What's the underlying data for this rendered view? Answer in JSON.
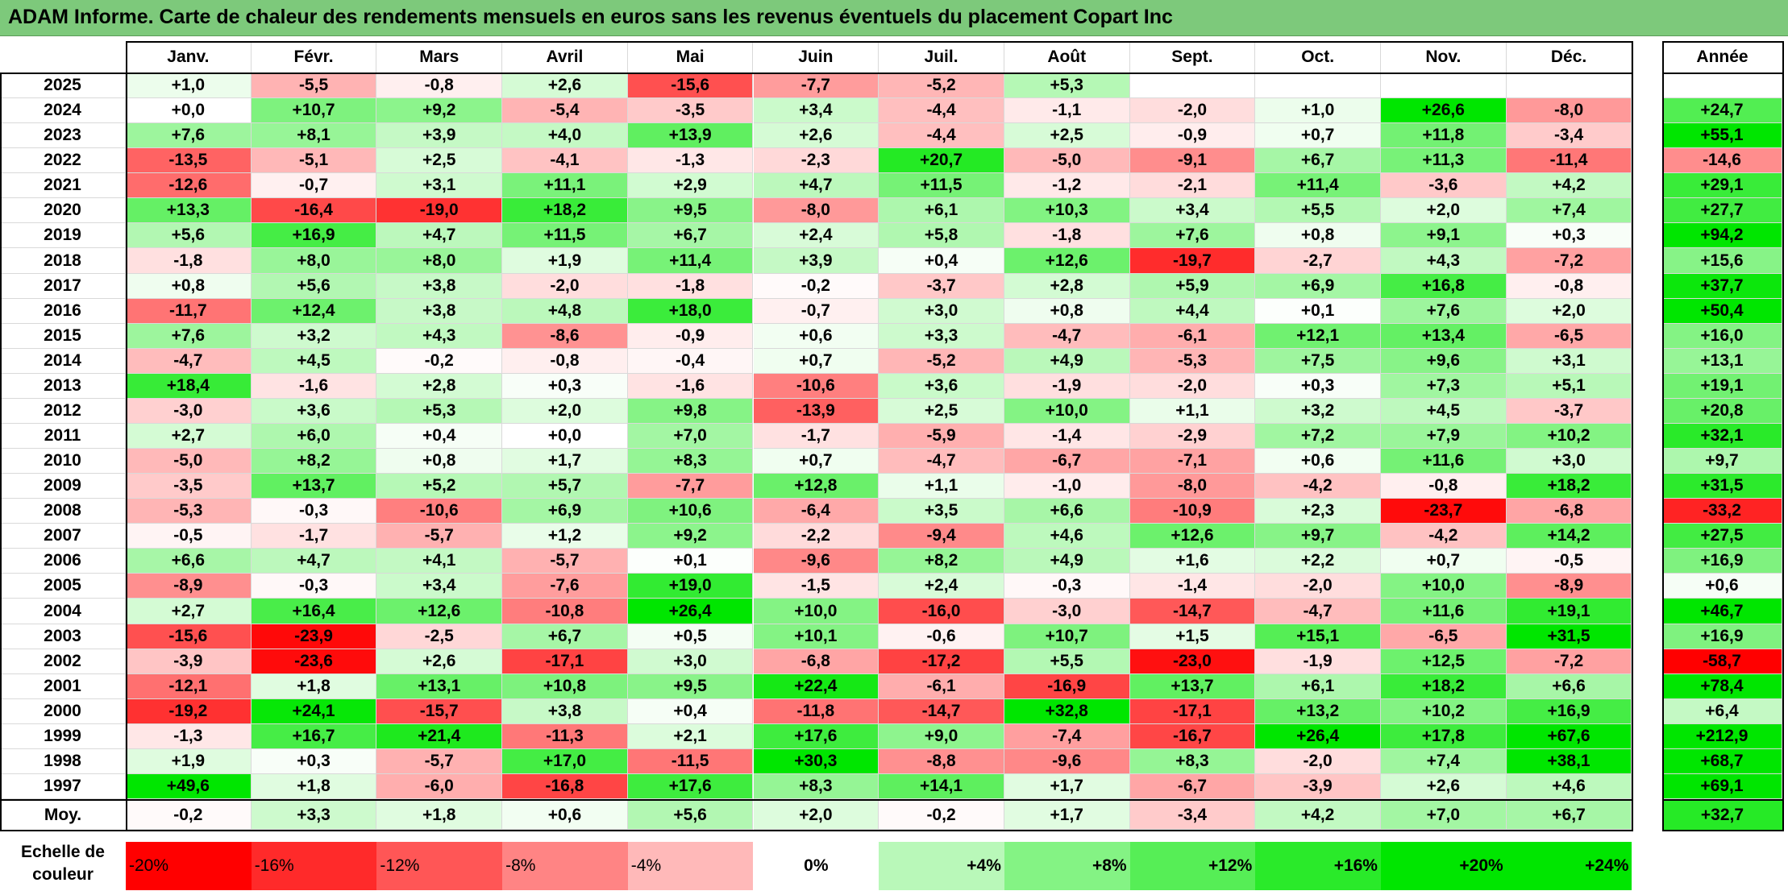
{
  "title": "ADAM Informe. Carte de chaleur des rendements mensuels en euros sans les revenus éventuels du placement Copart Inc",
  "chart_data": {
    "type": "heatmap",
    "columns": [
      "Janv.",
      "Févr.",
      "Mars",
      "Avril",
      "Mai",
      "Juin",
      "Juil.",
      "Août",
      "Sept.",
      "Oct.",
      "Nov.",
      "Déc."
    ],
    "annual_header": "Année",
    "rows": [
      {
        "year": "2025",
        "values": [
          "+1,0",
          "-5,5",
          "-0,8",
          "+2,6",
          "-15,6",
          "-7,7",
          "-5,2",
          "+5,3",
          "",
          "",
          "",
          ""
        ],
        "annual": ""
      },
      {
        "year": "2024",
        "values": [
          "+0,0",
          "+10,7",
          "+9,2",
          "-5,4",
          "-3,5",
          "+3,4",
          "-4,4",
          "-1,1",
          "-2,0",
          "+1,0",
          "+26,6",
          "-8,0"
        ],
        "annual": "+24,7"
      },
      {
        "year": "2023",
        "values": [
          "+7,6",
          "+8,1",
          "+3,9",
          "+4,0",
          "+13,9",
          "+2,6",
          "-4,4",
          "+2,5",
          "-0,9",
          "+0,7",
          "+11,8",
          "-3,4"
        ],
        "annual": "+55,1"
      },
      {
        "year": "2022",
        "values": [
          "-13,5",
          "-5,1",
          "+2,5",
          "-4,1",
          "-1,3",
          "-2,3",
          "+20,7",
          "-5,0",
          "-9,1",
          "+6,7",
          "+11,3",
          "-11,4"
        ],
        "annual": "-14,6"
      },
      {
        "year": "2021",
        "values": [
          "-12,6",
          "-0,7",
          "+3,1",
          "+11,1",
          "+2,9",
          "+4,7",
          "+11,5",
          "-1,2",
          "-2,1",
          "+11,4",
          "-3,6",
          "+4,2"
        ],
        "annual": "+29,1"
      },
      {
        "year": "2020",
        "values": [
          "+13,3",
          "-16,4",
          "-19,0",
          "+18,2",
          "+9,5",
          "-8,0",
          "+6,1",
          "+10,3",
          "+3,4",
          "+5,5",
          "+2,0",
          "+7,4"
        ],
        "annual": "+27,7"
      },
      {
        "year": "2019",
        "values": [
          "+5,6",
          "+16,9",
          "+4,7",
          "+11,5",
          "+6,7",
          "+2,4",
          "+5,8",
          "-1,8",
          "+7,6",
          "+0,8",
          "+9,1",
          "+0,3"
        ],
        "annual": "+94,2"
      },
      {
        "year": "2018",
        "values": [
          "-1,8",
          "+8,0",
          "+8,0",
          "+1,9",
          "+11,4",
          "+3,9",
          "+0,4",
          "+12,6",
          "-19,7",
          "-2,7",
          "+4,3",
          "-7,2"
        ],
        "annual": "+15,6"
      },
      {
        "year": "2017",
        "values": [
          "+0,8",
          "+5,6",
          "+3,8",
          "-2,0",
          "-1,8",
          "-0,2",
          "-3,7",
          "+2,8",
          "+5,9",
          "+6,9",
          "+16,8",
          "-0,8"
        ],
        "annual": "+37,7"
      },
      {
        "year": "2016",
        "values": [
          "-11,7",
          "+12,4",
          "+3,8",
          "+4,8",
          "+18,0",
          "-0,7",
          "+3,0",
          "+0,8",
          "+4,4",
          "+0,1",
          "+7,6",
          "+2,0"
        ],
        "annual": "+50,4"
      },
      {
        "year": "2015",
        "values": [
          "+7,6",
          "+3,2",
          "+4,3",
          "-8,6",
          "-0,9",
          "+0,6",
          "+3,3",
          "-4,7",
          "-6,1",
          "+12,1",
          "+13,4",
          "-6,5"
        ],
        "annual": "+16,0"
      },
      {
        "year": "2014",
        "values": [
          "-4,7",
          "+4,5",
          "-0,2",
          "-0,8",
          "-0,4",
          "+0,7",
          "-5,2",
          "+4,9",
          "-5,3",
          "+7,5",
          "+9,6",
          "+3,1"
        ],
        "annual": "+13,1"
      },
      {
        "year": "2013",
        "values": [
          "+18,4",
          "-1,6",
          "+2,8",
          "+0,3",
          "-1,6",
          "-10,6",
          "+3,6",
          "-1,9",
          "-2,0",
          "+0,3",
          "+7,3",
          "+5,1"
        ],
        "annual": "+19,1"
      },
      {
        "year": "2012",
        "values": [
          "-3,0",
          "+3,6",
          "+5,3",
          "+2,0",
          "+9,8",
          "-13,9",
          "+2,5",
          "+10,0",
          "+1,1",
          "+3,2",
          "+4,5",
          "-3,7"
        ],
        "annual": "+20,8"
      },
      {
        "year": "2011",
        "values": [
          "+2,7",
          "+6,0",
          "+0,4",
          "+0,0",
          "+7,0",
          "-1,7",
          "-5,9",
          "-1,4",
          "-2,9",
          "+7,2",
          "+7,9",
          "+10,2"
        ],
        "annual": "+32,1"
      },
      {
        "year": "2010",
        "values": [
          "-5,0",
          "+8,2",
          "+0,8",
          "+1,7",
          "+8,3",
          "+0,7",
          "-4,7",
          "-6,7",
          "-7,1",
          "+0,6",
          "+11,6",
          "+3,0"
        ],
        "annual": "+9,7"
      },
      {
        "year": "2009",
        "values": [
          "-3,5",
          "+13,7",
          "+5,2",
          "+5,7",
          "-7,7",
          "+12,8",
          "+1,1",
          "-1,0",
          "-8,0",
          "-4,2",
          "-0,8",
          "+18,2"
        ],
        "annual": "+31,5"
      },
      {
        "year": "2008",
        "values": [
          "-5,3",
          "-0,3",
          "-10,6",
          "+6,9",
          "+10,6",
          "-6,4",
          "+3,5",
          "+6,6",
          "-10,9",
          "+2,3",
          "-23,7",
          "-6,8"
        ],
        "annual": "-33,2"
      },
      {
        "year": "2007",
        "values": [
          "-0,5",
          "-1,7",
          "-5,7",
          "+1,2",
          "+9,2",
          "-2,2",
          "-9,4",
          "+4,6",
          "+12,6",
          "+9,7",
          "-4,2",
          "+14,2"
        ],
        "annual": "+27,5"
      },
      {
        "year": "2006",
        "values": [
          "+6,6",
          "+4,7",
          "+4,1",
          "-5,7",
          "+0,1",
          "-9,6",
          "+8,2",
          "+4,9",
          "+1,6",
          "+2,2",
          "+0,7",
          "-0,5"
        ],
        "annual": "+16,9"
      },
      {
        "year": "2005",
        "values": [
          "-8,9",
          "-0,3",
          "+3,4",
          "-7,6",
          "+19,0",
          "-1,5",
          "+2,4",
          "-0,3",
          "-1,4",
          "-2,0",
          "+10,0",
          "-8,9"
        ],
        "annual": "+0,6"
      },
      {
        "year": "2004",
        "values": [
          "+2,7",
          "+16,4",
          "+12,6",
          "-10,8",
          "+26,4",
          "+10,0",
          "-16,0",
          "-3,0",
          "-14,7",
          "-4,7",
          "+11,6",
          "+19,1"
        ],
        "annual": "+46,7"
      },
      {
        "year": "2003",
        "values": [
          "-15,6",
          "-23,9",
          "-2,5",
          "+6,7",
          "+0,5",
          "+10,1",
          "-0,6",
          "+10,7",
          "+1,5",
          "+15,1",
          "-6,5",
          "+31,5"
        ],
        "annual": "+16,9"
      },
      {
        "year": "2002",
        "values": [
          "-3,9",
          "-23,6",
          "+2,6",
          "-17,1",
          "+3,0",
          "-6,8",
          "-17,2",
          "+5,5",
          "-23,0",
          "-1,9",
          "+12,5",
          "-7,2"
        ],
        "annual": "-58,7"
      },
      {
        "year": "2001",
        "values": [
          "-12,1",
          "+1,8",
          "+13,1",
          "+10,8",
          "+9,5",
          "+22,4",
          "-6,1",
          "-16,9",
          "+13,7",
          "+6,1",
          "+18,2",
          "+6,6"
        ],
        "annual": "+78,4"
      },
      {
        "year": "2000",
        "values": [
          "-19,2",
          "+24,1",
          "-15,7",
          "+3,8",
          "+0,4",
          "-11,8",
          "-14,7",
          "+32,8",
          "-17,1",
          "+13,2",
          "+10,2",
          "+16,9"
        ],
        "annual": "+6,4"
      },
      {
        "year": "1999",
        "values": [
          "-1,3",
          "+16,7",
          "+21,4",
          "-11,3",
          "+2,1",
          "+17,6",
          "+9,0",
          "-7,4",
          "-16,7",
          "+26,4",
          "+17,8",
          "+67,6"
        ],
        "annual": "+212,9"
      },
      {
        "year": "1998",
        "values": [
          "+1,9",
          "+0,3",
          "-5,7",
          "+17,0",
          "-11,5",
          "+30,3",
          "-8,8",
          "-9,6",
          "+8,3",
          "-2,0",
          "+7,4",
          "+38,1"
        ],
        "annual": "+68,7"
      },
      {
        "year": "1997",
        "values": [
          "+49,6",
          "+1,8",
          "-6,0",
          "-16,8",
          "+17,6",
          "+8,3",
          "+14,1",
          "+1,7",
          "-6,7",
          "-3,9",
          "+2,6",
          "+4,6"
        ],
        "annual": "+69,1"
      }
    ],
    "average": {
      "label": "Moy.",
      "values": [
        "-0,2",
        "+3,3",
        "+1,8",
        "+0,6",
        "+5,6",
        "+2,0",
        "-0,2",
        "+1,7",
        "-3,4",
        "+4,2",
        "+7,0",
        "+6,7"
      ],
      "annual": "+32,7"
    },
    "color_scale": {
      "label_line1": "Echelle de",
      "label_line2": "couleur",
      "stops": [
        "-20%",
        "-16%",
        "-12%",
        "-8%",
        "-4%",
        "0%",
        "+4%",
        "+8%",
        "+12%",
        "+16%",
        "+20%",
        "+24%"
      ],
      "stop_values": [
        -20,
        -16,
        -12,
        -8,
        -4,
        0,
        4,
        8,
        12,
        16,
        20,
        24
      ],
      "colors": {
        "negative_max": "#ff0000",
        "neutral": "#ffffff",
        "positive_max": "#00e600"
      }
    }
  }
}
